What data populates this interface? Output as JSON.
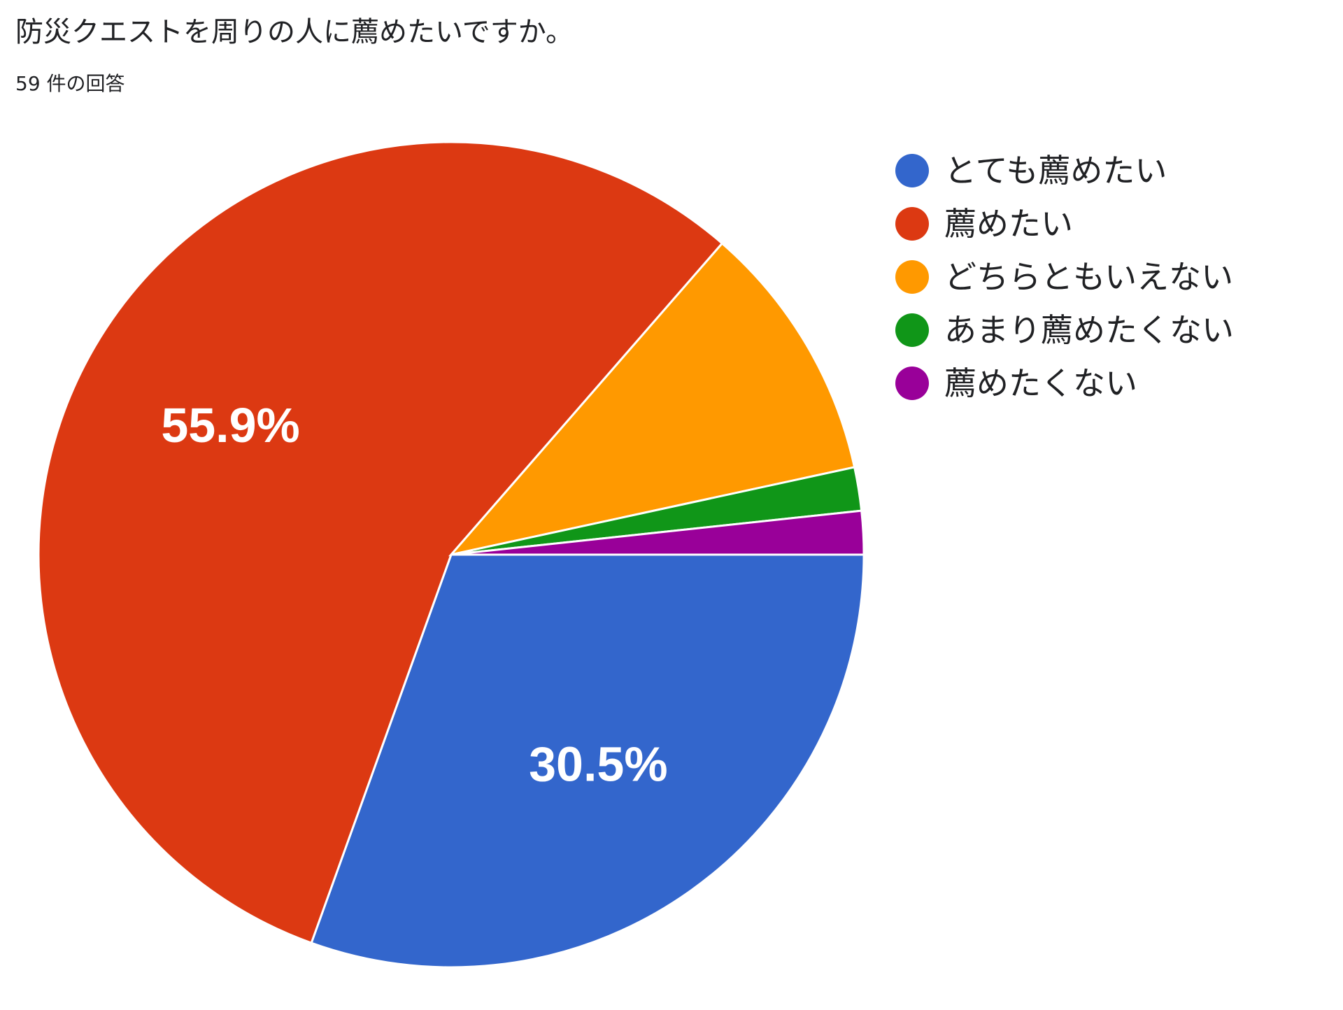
{
  "title": "防災クエストを周りの人に薦めたいですか。",
  "response_count": "59 件の回答",
  "chart_data": {
    "type": "pie",
    "categories": [
      "とても薦めたい",
      "薦めたい",
      "どちらともいえない",
      "あまり薦めたくない",
      "薦めたくない"
    ],
    "values": [
      30.5,
      55.9,
      10.2,
      1.7,
      1.7
    ],
    "colors": [
      "#3366cc",
      "#dc3912",
      "#ff9900",
      "#109618",
      "#990099"
    ],
    "data_labels": [
      "30.5%",
      "55.9%",
      "",
      "",
      ""
    ],
    "legend_position": "right",
    "start": "3 o'clock, clockwise"
  },
  "legend": [
    {
      "label": "とても薦めたい",
      "color": "#3366cc"
    },
    {
      "label": "薦めたい",
      "color": "#dc3912"
    },
    {
      "label": "どちらともいえない",
      "color": "#ff9900"
    },
    {
      "label": "あまり薦めたくない",
      "color": "#109618"
    },
    {
      "label": "薦めたくない",
      "color": "#990099"
    }
  ]
}
